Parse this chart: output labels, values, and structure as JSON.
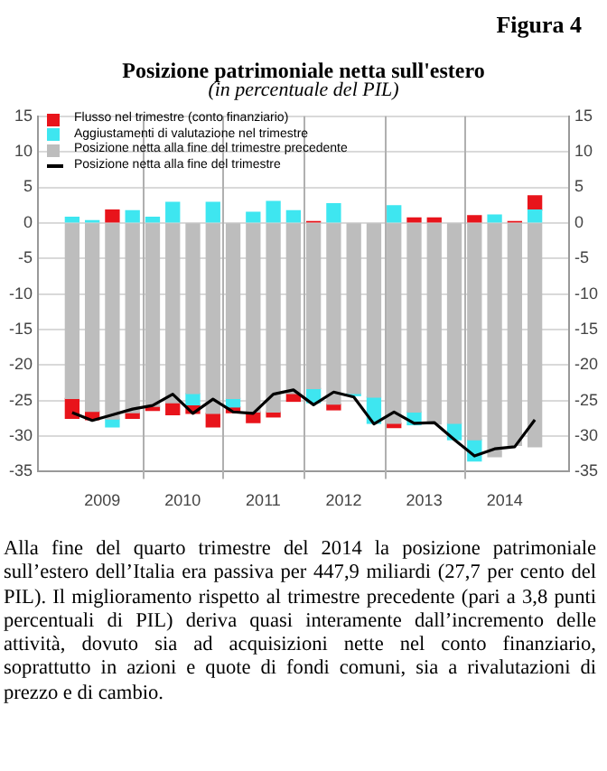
{
  "chart_data": {
    "type": "bar",
    "title": "Posizione patrimoniale netta sull'estero",
    "subtitle": "(in percentuale del PIL)",
    "annotations": [
      "Figura 4",
      "Alla fine del quarto trimestre del 2014 la posizione patrimoniale sull’estero dell’Italia era passiva per 447,9 miliardi (27,7 per cento del PIL). Il miglioramento rispetto al trimestre precedente (pari a 3,8 punti percentuali di PIL) deriva quasi interamente dall’incremento delle attività, dovuto sia ad acquisizioni nette nel conto finanziario, soprattutto in azioni e quote di fondi comuni, sia a rivalutazioni di prezzo e di cambio."
    ],
    "x": [
      2009.125,
      2009.375,
      2009.625,
      2009.875,
      2010.125,
      2010.375,
      2010.625,
      2010.875,
      2011.125,
      2011.375,
      2011.625,
      2011.875,
      2012.125,
      2012.375,
      2012.625,
      2012.875,
      2013.125,
      2013.375,
      2013.625,
      2013.875,
      2014.125,
      2014.375,
      2014.625,
      2014.875
    ],
    "xlim": [
      2009,
      2015
    ],
    "xticks": [
      {
        "value": 2009.5,
        "label": "2009"
      },
      {
        "value": 2010,
        "label": null
      },
      {
        "value": 2010.5,
        "label": "2010"
      },
      {
        "value": 2011,
        "label": null
      },
      {
        "value": 2011.5,
        "label": "2011"
      },
      {
        "value": 2012,
        "label": null
      },
      {
        "value": 2012.5,
        "label": "2012"
      },
      {
        "value": 2013,
        "label": null
      },
      {
        "value": 2013.5,
        "label": "2013"
      },
      {
        "value": 2014,
        "label": null
      },
      {
        "value": 2014.5,
        "label": "2014"
      }
    ],
    "ylim": [
      -35,
      15
    ],
    "yticks": [
      -35,
      -30,
      -25,
      -20,
      -15,
      -10,
      -5,
      0,
      5,
      10,
      15
    ],
    "y2lim": [
      -35,
      15
    ],
    "y2ticks": [
      -35,
      -30,
      -25,
      -20,
      -15,
      -10,
      -5,
      0,
      5,
      10,
      15
    ],
    "stacked": true,
    "grid": true,
    "legend": "top left",
    "series": [
      {
        "name": "Posizione netta alla fine del trimestre precedente",
        "color": "#bdbdbd",
        "values": [
          -24.7,
          -26.5,
          -27.6,
          -26.7,
          -25.8,
          -25.3,
          -24.0,
          -26.8,
          -24.7,
          -26.6,
          -26.6,
          -24.0,
          -23.3,
          -25.5,
          -24.0,
          -24.5,
          -28.2,
          -26.6,
          -28.3,
          -28.2,
          -30.5,
          -32.9,
          -31.3,
          -31.5
        ]
      },
      {
        "name": "Aggiustamenti di valutazione nel trimestre",
        "color": "#3ee6f0",
        "values": [
          0.8,
          0.3,
          -1.1,
          1.7,
          0.8,
          2.9,
          -1.6,
          2.9,
          -1.2,
          1.5,
          3.0,
          1.7,
          -2.0,
          2.7,
          -0.3,
          -3.7,
          2.4,
          -1.8,
          null,
          -2.3,
          -3.0,
          1.1,
          null,
          1.8
        ]
      },
      {
        "name": "Flusso nel trimestre (conto finanziario)",
        "color": "#e8141b",
        "values": [
          -2.8,
          -1.2,
          1.8,
          -0.8,
          -0.6,
          -1.7,
          -1.2,
          -1.9,
          -0.8,
          -1.5,
          -0.7,
          -1.1,
          0.2,
          -0.8,
          null,
          null,
          -0.6,
          0.7,
          0.7,
          null,
          1.0,
          null,
          0.2,
          2.0
        ]
      },
      {
        "name": "Posizione netta alla fine del trimestre",
        "type": "line",
        "color": "#000000",
        "values": [
          -26.7,
          -27.8,
          -27.0,
          -26.2,
          -25.7,
          -24.1,
          -26.8,
          -24.8,
          -26.6,
          -26.8,
          -24.1,
          -23.5,
          -25.6,
          -23.8,
          -24.5,
          -28.3,
          -26.6,
          -28.2,
          -28.1,
          -30.5,
          -32.8,
          -31.8,
          -31.5,
          -27.7
        ]
      }
    ]
  }
}
